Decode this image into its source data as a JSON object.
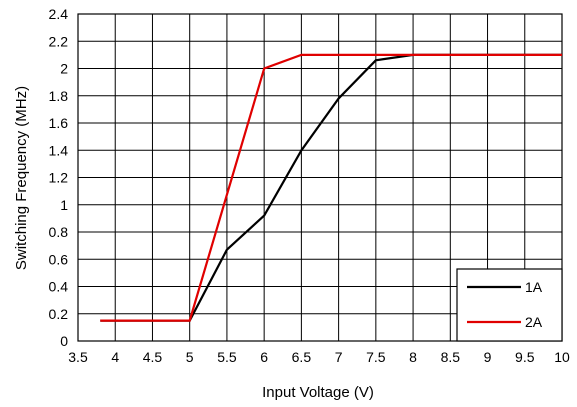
{
  "chart_data": {
    "type": "line",
    "title": "",
    "xlabel": "Input Voltage (V)",
    "ylabel": "Switching Frequency (MHz)",
    "xlim": [
      3.5,
      10
    ],
    "ylim": [
      0,
      2.4
    ],
    "xticks": [
      3.5,
      4,
      4.5,
      5,
      5.5,
      6,
      6.5,
      7,
      7.5,
      8,
      8.5,
      9,
      9.5,
      10
    ],
    "yticks": [
      0,
      0.2,
      0.4,
      0.6,
      0.8,
      1,
      1.2,
      1.4,
      1.6,
      1.8,
      2,
      2.2,
      2.4
    ],
    "grid": true,
    "legend": "bottom-right",
    "series": [
      {
        "name": "1A",
        "color": "#000000",
        "x": [
          3.8,
          5.0,
          5.5,
          6.0,
          6.5,
          7.0,
          7.5,
          8.0,
          10.0
        ],
        "y": [
          0.15,
          0.15,
          0.67,
          0.92,
          1.4,
          1.78,
          2.06,
          2.1,
          2.1
        ]
      },
      {
        "name": "2A",
        "color": "#e00000",
        "x": [
          3.8,
          5.0,
          6.0,
          6.5,
          10.0
        ],
        "y": [
          0.15,
          0.15,
          2.0,
          2.1,
          2.1
        ]
      }
    ]
  }
}
